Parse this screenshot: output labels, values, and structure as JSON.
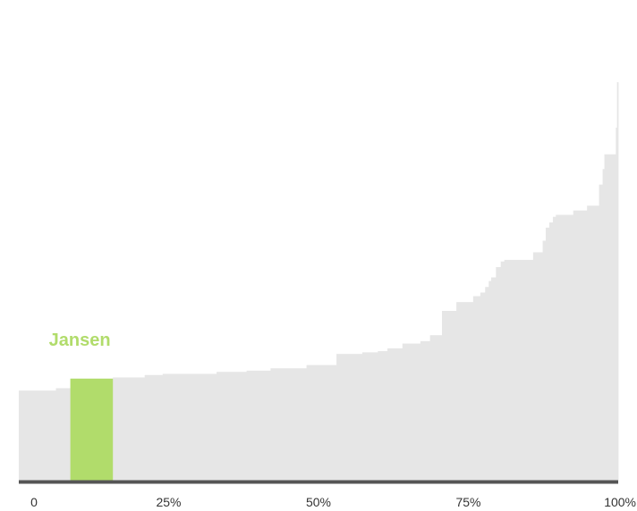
{
  "colors": {
    "base": "#e6e6e6",
    "highlight": "#b1dc6b",
    "axis": "#555555",
    "tick_text": "#333333"
  },
  "chart_data": {
    "type": "bar",
    "x_unit": "cumulative share of total (%)",
    "xlim": [
      0,
      100
    ],
    "ylim": [
      0,
      100
    ],
    "x_ticks": [
      {
        "value": 0,
        "label": "0"
      },
      {
        "value": 25,
        "label": "25%"
      },
      {
        "value": 50,
        "label": "50%"
      },
      {
        "value": 75,
        "label": "75%"
      },
      {
        "value": 100,
        "label": "100%"
      }
    ],
    "highlight": {
      "label": "Jansen",
      "x_start": 8.6,
      "x_end": 15.7,
      "value": 25.6
    },
    "segments": [
      {
        "x_start": 0.0,
        "x_end": 6.2,
        "value": 22.6
      },
      {
        "x_start": 6.2,
        "x_end": 8.6,
        "value": 23.2
      },
      {
        "x_start": 8.6,
        "x_end": 15.7,
        "value": 25.6
      },
      {
        "x_start": 15.7,
        "x_end": 21.0,
        "value": 25.9
      },
      {
        "x_start": 21.0,
        "x_end": 24.0,
        "value": 26.5
      },
      {
        "x_start": 24.0,
        "x_end": 33.0,
        "value": 26.8
      },
      {
        "x_start": 33.0,
        "x_end": 38.0,
        "value": 27.3
      },
      {
        "x_start": 38.0,
        "x_end": 42.0,
        "value": 27.6
      },
      {
        "x_start": 42.0,
        "x_end": 48.0,
        "value": 28.2
      },
      {
        "x_start": 48.0,
        "x_end": 53.0,
        "value": 29.0
      },
      {
        "x_start": 53.0,
        "x_end": 57.3,
        "value": 31.8
      },
      {
        "x_start": 57.3,
        "x_end": 59.9,
        "value": 32.2
      },
      {
        "x_start": 59.9,
        "x_end": 61.5,
        "value": 32.5
      },
      {
        "x_start": 61.5,
        "x_end": 64.0,
        "value": 33.2
      },
      {
        "x_start": 64.0,
        "x_end": 67.0,
        "value": 34.4
      },
      {
        "x_start": 67.0,
        "x_end": 68.6,
        "value": 35.0
      },
      {
        "x_start": 68.6,
        "x_end": 70.6,
        "value": 36.5
      },
      {
        "x_start": 70.6,
        "x_end": 73.0,
        "value": 42.6
      },
      {
        "x_start": 73.0,
        "x_end": 75.8,
        "value": 44.8
      },
      {
        "x_start": 75.8,
        "x_end": 77.0,
        "value": 46.3
      },
      {
        "x_start": 77.0,
        "x_end": 77.8,
        "value": 47.2
      },
      {
        "x_start": 77.8,
        "x_end": 78.4,
        "value": 48.6
      },
      {
        "x_start": 78.4,
        "x_end": 78.8,
        "value": 50.1
      },
      {
        "x_start": 78.8,
        "x_end": 79.6,
        "value": 51.0
      },
      {
        "x_start": 79.6,
        "x_end": 80.4,
        "value": 53.6
      },
      {
        "x_start": 80.4,
        "x_end": 81.0,
        "value": 55.0
      },
      {
        "x_start": 81.0,
        "x_end": 85.8,
        "value": 55.4
      },
      {
        "x_start": 85.8,
        "x_end": 87.4,
        "value": 57.3
      },
      {
        "x_start": 87.4,
        "x_end": 87.9,
        "value": 60.2
      },
      {
        "x_start": 87.9,
        "x_end": 88.5,
        "value": 63.5
      },
      {
        "x_start": 88.5,
        "x_end": 89.1,
        "value": 64.8
      },
      {
        "x_start": 89.1,
        "x_end": 89.6,
        "value": 66.2
      },
      {
        "x_start": 89.6,
        "x_end": 92.5,
        "value": 66.7
      },
      {
        "x_start": 92.5,
        "x_end": 94.8,
        "value": 67.8
      },
      {
        "x_start": 94.8,
        "x_end": 96.8,
        "value": 69.0
      },
      {
        "x_start": 96.8,
        "x_end": 97.4,
        "value": 74.3
      },
      {
        "x_start": 97.4,
        "x_end": 97.7,
        "value": 78.2
      },
      {
        "x_start": 97.7,
        "x_end": 99.6,
        "value": 81.9
      },
      {
        "x_start": 99.6,
        "x_end": 99.8,
        "value": 88.6
      },
      {
        "x_start": 99.8,
        "x_end": 100.0,
        "value": 100.0
      }
    ]
  }
}
